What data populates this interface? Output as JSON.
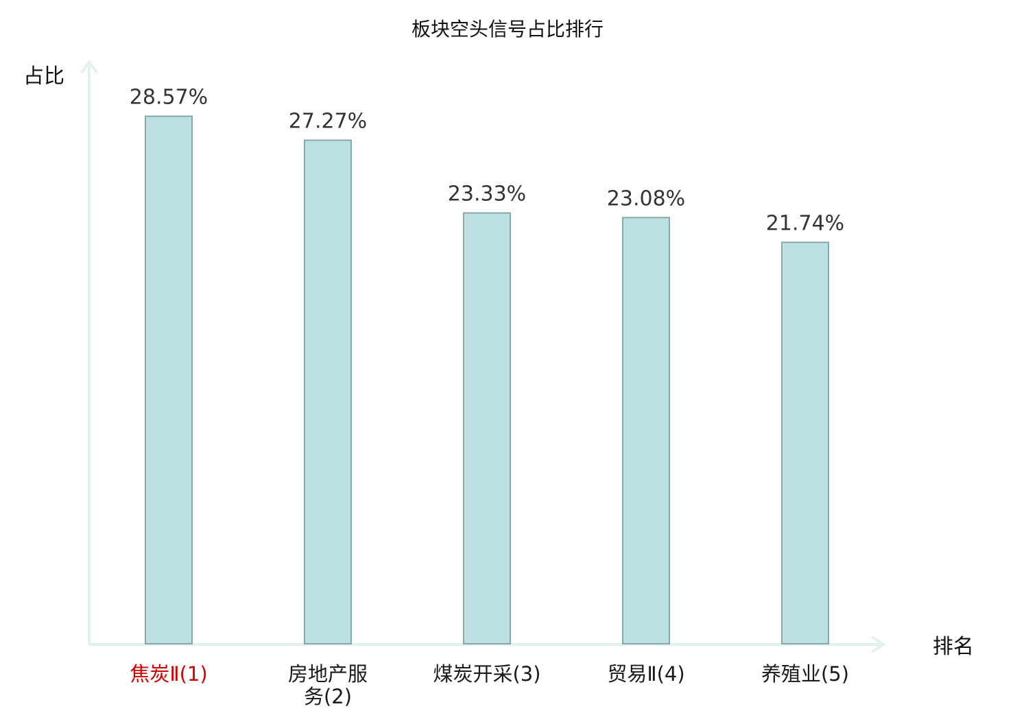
{
  "chart_data": {
    "type": "bar",
    "title": "板块空头信号占比排行",
    "ylabel": "占比",
    "xlabel": "排名",
    "categories": [
      "焦炭Ⅱ(1)",
      "房地产服务(2)",
      "煤炭开采(3)",
      "贸易Ⅱ(4)",
      "养殖业(5)"
    ],
    "category_lines": [
      [
        "焦炭Ⅱ(1)"
      ],
      [
        "房地产服",
        "务(2)"
      ],
      [
        "煤炭开采(3)"
      ],
      [
        "贸易Ⅱ(4)"
      ],
      [
        "养殖业(5)"
      ]
    ],
    "values": [
      28.57,
      27.27,
      23.33,
      23.08,
      21.74
    ],
    "value_labels": [
      "28.57%",
      "27.27%",
      "23.33%",
      "23.08%",
      "21.74%"
    ],
    "ylim": [
      0,
      30
    ],
    "grid": false,
    "highlight_index": 0,
    "colors": {
      "bar_fill": "#bde0e2",
      "bar_stroke": "#8aa6a8",
      "axis": "#dff2ef",
      "highlight_label": "#d40000"
    }
  }
}
